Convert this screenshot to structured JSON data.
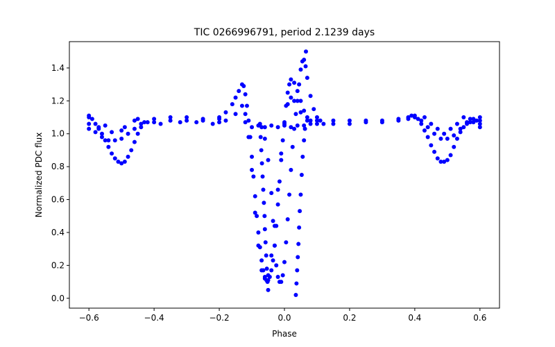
{
  "chart_data": {
    "type": "scatter",
    "title": "TIC 0266996791, period 2.1239 days",
    "xlabel": "Phase",
    "ylabel": "Normalized PDC flux",
    "xlim": [
      -0.66,
      0.66
    ],
    "ylim": [
      -0.06,
      1.56
    ],
    "xticks": [
      -0.6,
      -0.4,
      -0.2,
      0.0,
      0.2,
      0.4,
      0.6
    ],
    "xtick_labels": [
      "−0.6",
      "−0.4",
      "−0.2",
      "0.0",
      "0.2",
      "0.4",
      "0.6"
    ],
    "yticks": [
      0.0,
      0.2,
      0.4,
      0.6,
      0.8,
      1.0,
      1.2,
      1.4
    ],
    "ytick_labels": [
      "0.0",
      "0.2",
      "0.4",
      "0.6",
      "0.8",
      "1.0",
      "1.2",
      "1.4"
    ],
    "grid": false,
    "legend": false,
    "marker_color": "#0000ff",
    "series": [
      {
        "points": [
          [
            -0.6,
            1.1
          ],
          [
            -0.59,
            1.09
          ],
          [
            -0.58,
            1.06
          ],
          [
            -0.57,
            1.03
          ],
          [
            -0.56,
            1.0
          ],
          [
            -0.55,
            0.96
          ],
          [
            -0.54,
            0.92
          ],
          [
            -0.53,
            0.88
          ],
          [
            -0.52,
            0.85
          ],
          [
            -0.51,
            0.83
          ],
          [
            -0.5,
            0.82
          ],
          [
            -0.49,
            0.83
          ],
          [
            -0.48,
            0.86
          ],
          [
            -0.47,
            0.9
          ],
          [
            -0.46,
            0.95
          ],
          [
            -0.45,
            1.0
          ],
          [
            -0.44,
            1.04
          ],
          [
            -0.43,
            1.07
          ],
          [
            -0.6,
            1.03
          ],
          [
            -0.58,
            1.01
          ],
          [
            -0.56,
            0.98
          ],
          [
            -0.54,
            0.96
          ],
          [
            -0.52,
            0.96
          ],
          [
            -0.5,
            0.97
          ],
          [
            -0.48,
            1.0
          ],
          [
            -0.46,
            1.03
          ],
          [
            -0.44,
            1.06
          ],
          [
            -0.42,
            1.07
          ],
          [
            -0.4,
            1.07
          ],
          [
            -0.35,
            1.08
          ],
          [
            -0.3,
            1.08
          ],
          [
            -0.25,
            1.08
          ],
          [
            -0.2,
            1.07
          ],
          [
            -0.6,
            1.11
          ],
          [
            -0.55,
            1.05
          ],
          [
            -0.5,
            1.02
          ],
          [
            -0.45,
            1.09
          ],
          [
            -0.4,
            1.09
          ],
          [
            -0.35,
            1.1
          ],
          [
            -0.3,
            1.1
          ],
          [
            -0.25,
            1.09
          ],
          [
            -0.2,
            1.09
          ],
          [
            -0.6,
            1.06
          ],
          [
            -0.57,
            1.04
          ],
          [
            -0.53,
            1.01
          ],
          [
            -0.49,
            1.04
          ],
          [
            -0.46,
            1.08
          ],
          [
            -0.38,
            1.06
          ],
          [
            -0.32,
            1.07
          ],
          [
            -0.27,
            1.07
          ],
          [
            -0.22,
            1.06
          ],
          [
            -0.2,
            1.1
          ],
          [
            -0.18,
            1.13
          ],
          [
            -0.16,
            1.18
          ],
          [
            -0.15,
            1.22
          ],
          [
            -0.14,
            1.26
          ],
          [
            -0.13,
            1.3
          ],
          [
            -0.125,
            1.29
          ],
          [
            -0.12,
            1.24
          ],
          [
            -0.115,
            1.17
          ],
          [
            -0.11,
            1.08
          ],
          [
            -0.105,
            0.98
          ],
          [
            -0.1,
            0.86
          ],
          [
            -0.095,
            0.74
          ],
          [
            -0.09,
            0.62
          ],
          [
            -0.085,
            0.5
          ],
          [
            -0.08,
            0.4
          ],
          [
            -0.075,
            0.31
          ],
          [
            -0.07,
            0.23
          ],
          [
            -0.065,
            0.17
          ],
          [
            -0.06,
            0.13
          ],
          [
            -0.055,
            0.11
          ],
          [
            -0.05,
            0.11
          ],
          [
            -0.045,
            0.13
          ],
          [
            -0.04,
            0.17
          ],
          [
            -0.035,
            0.23
          ],
          [
            -0.03,
            0.32
          ],
          [
            -0.025,
            0.44
          ],
          [
            -0.02,
            0.57
          ],
          [
            -0.015,
            0.71
          ],
          [
            -0.01,
            0.84
          ],
          [
            -0.005,
            0.96
          ],
          [
            0.0,
            1.07
          ],
          [
            0.005,
            1.17
          ],
          [
            0.01,
            1.25
          ],
          [
            0.015,
            1.3
          ],
          [
            0.02,
            1.33
          ],
          [
            0.03,
            1.31
          ],
          [
            0.04,
            1.26
          ],
          [
            0.05,
            1.2
          ],
          [
            0.06,
            1.14
          ],
          [
            0.07,
            1.1
          ],
          [
            0.08,
            1.08
          ],
          [
            -0.18,
            1.08
          ],
          [
            -0.15,
            1.12
          ],
          [
            -0.13,
            1.17
          ],
          [
            -0.12,
            1.12
          ],
          [
            -0.11,
            0.98
          ],
          [
            -0.1,
            0.78
          ],
          [
            -0.09,
            0.52
          ],
          [
            -0.08,
            0.32
          ],
          [
            -0.07,
            0.17
          ],
          [
            -0.06,
            0.12
          ],
          [
            -0.05,
            0.14
          ],
          [
            -0.04,
            0.26
          ],
          [
            -0.03,
            0.44
          ],
          [
            -0.02,
            0.66
          ],
          [
            -0.01,
            0.88
          ],
          [
            0.0,
            1.06
          ],
          [
            0.01,
            1.18
          ],
          [
            0.02,
            1.22
          ],
          [
            0.03,
            1.2
          ],
          [
            0.05,
            1.13
          ],
          [
            0.07,
            1.08
          ],
          [
            -0.07,
            1.04
          ],
          [
            -0.06,
            0.97
          ],
          [
            -0.05,
            0.84
          ],
          [
            -0.04,
            0.64
          ],
          [
            -0.035,
            0.47
          ],
          [
            -0.03,
            0.32
          ],
          [
            -0.025,
            0.2
          ],
          [
            -0.02,
            0.13
          ],
          [
            -0.015,
            0.1
          ],
          [
            -0.01,
            0.1
          ],
          [
            -0.005,
            0.14
          ],
          [
            0.0,
            0.22
          ],
          [
            0.005,
            0.34
          ],
          [
            0.01,
            0.48
          ],
          [
            0.015,
            0.63
          ],
          [
            0.02,
            0.78
          ],
          [
            0.025,
            0.92
          ],
          [
            0.03,
            1.03
          ],
          [
            0.035,
            1.12
          ],
          [
            0.04,
            1.2
          ],
          [
            0.045,
            1.3
          ],
          [
            0.05,
            1.39
          ],
          [
            0.055,
            1.44
          ],
          [
            0.06,
            1.45
          ],
          [
            0.065,
            1.41
          ],
          [
            0.07,
            1.34
          ],
          [
            0.08,
            1.23
          ],
          [
            0.09,
            1.15
          ],
          [
            0.1,
            1.1
          ],
          [
            0.11,
            1.08
          ],
          [
            -0.075,
            1.06
          ],
          [
            -0.073,
            0.98
          ],
          [
            -0.071,
            0.9
          ],
          [
            -0.069,
            0.82
          ],
          [
            -0.067,
            0.74
          ],
          [
            -0.065,
            0.66
          ],
          [
            -0.063,
            0.58
          ],
          [
            -0.061,
            0.5
          ],
          [
            -0.06,
            0.42
          ],
          [
            -0.058,
            0.34
          ],
          [
            -0.056,
            0.26
          ],
          [
            -0.054,
            0.18
          ],
          [
            -0.052,
            0.1
          ],
          [
            -0.05,
            0.05
          ],
          [
            0.035,
            0.02
          ],
          [
            0.037,
            0.09
          ],
          [
            0.039,
            0.17
          ],
          [
            0.041,
            0.25
          ],
          [
            0.043,
            0.33
          ],
          [
            0.045,
            0.43
          ],
          [
            0.047,
            0.53
          ],
          [
            0.05,
            0.63
          ],
          [
            0.053,
            0.75
          ],
          [
            0.056,
            0.86
          ],
          [
            0.06,
            0.96
          ],
          [
            0.063,
            1.03
          ],
          [
            0.066,
            1.5
          ],
          [
            -0.12,
            1.07
          ],
          [
            -0.08,
            1.05
          ],
          [
            -0.04,
            1.05
          ],
          [
            0.0,
            1.05
          ],
          [
            0.04,
            1.05
          ],
          [
            0.08,
            1.06
          ],
          [
            0.12,
            1.06
          ],
          [
            -0.1,
            1.04
          ],
          [
            -0.06,
            1.04
          ],
          [
            -0.02,
            1.04
          ],
          [
            0.02,
            1.04
          ],
          [
            0.06,
            1.05
          ],
          [
            0.1,
            1.08
          ],
          [
            0.15,
            1.08
          ],
          [
            0.2,
            1.08
          ],
          [
            0.25,
            1.08
          ],
          [
            0.3,
            1.07
          ],
          [
            0.35,
            1.08
          ],
          [
            0.38,
            1.09
          ],
          [
            0.1,
            1.06
          ],
          [
            0.15,
            1.06
          ],
          [
            0.2,
            1.06
          ],
          [
            0.25,
            1.07
          ],
          [
            0.3,
            1.08
          ],
          [
            0.35,
            1.09
          ],
          [
            0.4,
            1.1
          ],
          [
            0.38,
            1.1
          ],
          [
            0.39,
            1.11
          ],
          [
            0.4,
            1.11
          ],
          [
            0.41,
            1.09
          ],
          [
            0.42,
            1.06
          ],
          [
            0.43,
            1.02
          ],
          [
            0.44,
            0.98
          ],
          [
            0.45,
            0.93
          ],
          [
            0.46,
            0.89
          ],
          [
            0.47,
            0.85
          ],
          [
            0.48,
            0.83
          ],
          [
            0.49,
            0.83
          ],
          [
            0.5,
            0.84
          ],
          [
            0.51,
            0.87
          ],
          [
            0.52,
            0.92
          ],
          [
            0.53,
            0.97
          ],
          [
            0.54,
            1.01
          ],
          [
            0.55,
            1.04
          ],
          [
            0.56,
            1.06
          ],
          [
            0.57,
            1.07
          ],
          [
            0.58,
            1.07
          ],
          [
            0.59,
            1.08
          ],
          [
            0.6,
            1.08
          ],
          [
            0.42,
            1.08
          ],
          [
            0.44,
            1.04
          ],
          [
            0.46,
            1.0
          ],
          [
            0.48,
            0.97
          ],
          [
            0.5,
            0.97
          ],
          [
            0.52,
            0.99
          ],
          [
            0.54,
            1.03
          ],
          [
            0.56,
            1.07
          ],
          [
            0.58,
            1.09
          ],
          [
            0.6,
            1.06
          ],
          [
            0.43,
            1.1
          ],
          [
            0.47,
            1.03
          ],
          [
            0.51,
            1.03
          ],
          [
            0.55,
            1.1
          ],
          [
            0.6,
            1.1
          ],
          [
            0.45,
            1.06
          ],
          [
            0.49,
            1.0
          ],
          [
            0.53,
            1.06
          ],
          [
            0.57,
            1.09
          ],
          [
            0.6,
            1.04
          ]
        ]
      }
    ]
  }
}
